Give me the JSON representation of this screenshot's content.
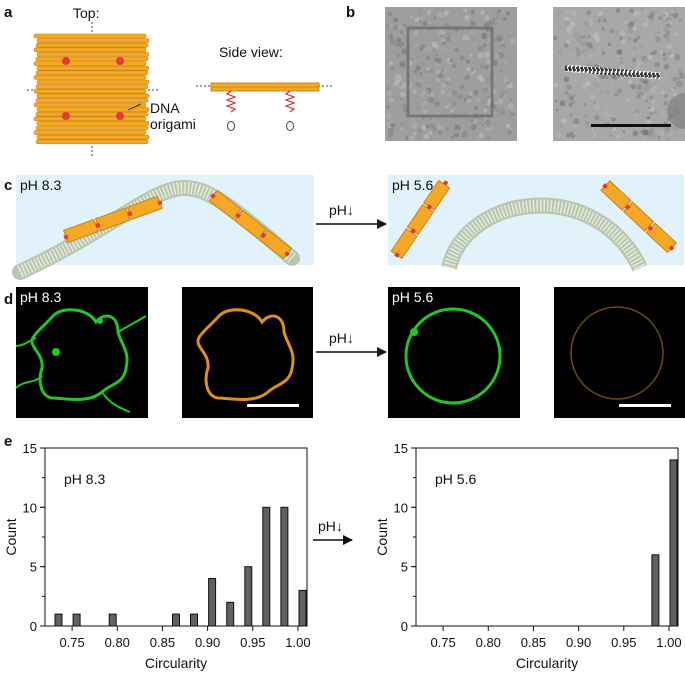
{
  "panel_labels": [
    "a",
    "b",
    "c",
    "d",
    "e"
  ],
  "panel_a": {
    "top_label": "Top:",
    "side_label": "Side view:",
    "origami_label_1": "DNA",
    "origami_label_2": "origami"
  },
  "panel_c": {
    "left_ph": "pH 8.3",
    "right_ph": "pH 5.6",
    "arrow_label": "pH↓"
  },
  "panel_d": {
    "left_ph": "pH 8.3",
    "right_ph": "pH 5.6",
    "arrow_label": "pH↓"
  },
  "panel_e_arrow_label": "pH↓",
  "colors": {
    "origami": "#F4A823",
    "marker": "#E53935",
    "membrane_bg": "#E2F2FB",
    "membrane": "#C8D4BE",
    "green": "#22C522",
    "orange": "#E08F12",
    "bar": "#555555"
  },
  "chart_data": [
    {
      "type": "bar",
      "annotation": "pH 8.3",
      "xlabel": "Circularity",
      "ylabel": "Count",
      "xlim": [
        0.72,
        1.01
      ],
      "ylim": [
        0,
        15
      ],
      "xticks": [
        "0.75",
        "0.80",
        "0.85",
        "0.90",
        "0.95",
        "1.00"
      ],
      "xtick_values": [
        0.75,
        0.8,
        0.85,
        0.9,
        0.95,
        1.0
      ],
      "yticks": [
        "0",
        "5",
        "10",
        "15"
      ],
      "ytick_values": [
        0,
        5,
        10,
        15
      ],
      "bin_width": 0.01,
      "x": [
        0.735,
        0.755,
        0.795,
        0.865,
        0.885,
        0.905,
        0.925,
        0.945,
        0.965,
        0.985,
        1.005
      ],
      "values": [
        1,
        1,
        1,
        1,
        1,
        4,
        2,
        5,
        10,
        10,
        3
      ]
    },
    {
      "type": "bar",
      "annotation": "pH 5.6",
      "xlabel": "Circularity",
      "ylabel": "Count",
      "xlim": [
        0.72,
        1.01
      ],
      "ylim": [
        0,
        15
      ],
      "xticks": [
        "0.75",
        "0.80",
        "0.85",
        "0.90",
        "0.95",
        "1.00"
      ],
      "xtick_values": [
        0.75,
        0.8,
        0.85,
        0.9,
        0.95,
        1.0
      ],
      "yticks": [
        "0",
        "5",
        "10",
        "15"
      ],
      "ytick_values": [
        0,
        5,
        10,
        15
      ],
      "bin_width": 0.01,
      "x": [
        0.985,
        1.005
      ],
      "values": [
        6,
        14
      ]
    }
  ]
}
